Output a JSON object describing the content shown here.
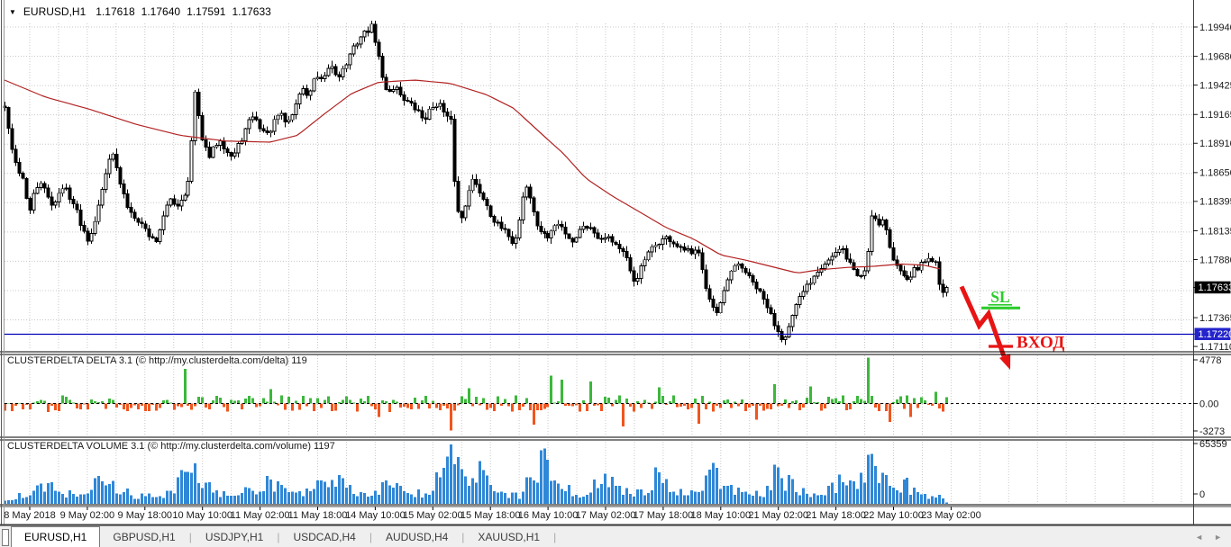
{
  "chart_header": {
    "dropdown_icon": "▼",
    "symbol_period": "EURUSD,H1",
    "open": "1.17618",
    "high": "1.17640",
    "low": "1.17591",
    "close": "1.17633"
  },
  "chart_data": {
    "type": "candlestick",
    "symbol": "EURUSD",
    "timeframe": "H1",
    "ohlc_current": {
      "open": 1.17618,
      "high": 1.1764,
      "low": 1.17591,
      "close": 1.17633
    },
    "price_axis_ticks": [
      "1.19940",
      "1.19680",
      "1.19425",
      "1.19165",
      "1.18910",
      "1.18650",
      "1.18395",
      "1.18135",
      "1.17880",
      "1.17365",
      "1.17110"
    ],
    "current_price_label": "1.17633",
    "support_level_label": "1.17220",
    "support_level": 1.1722,
    "time_axis_labels": [
      "8 May 2018",
      "9 May 02:00",
      "9 May 18:00",
      "10 May 10:00",
      "11 May 02:00",
      "11 May 18:00",
      "14 May 10:00",
      "15 May 02:00",
      "15 May 18:00",
      "16 May 10:00",
      "17 May 02:00",
      "17 May 18:00",
      "18 May 10:00",
      "21 May 02:00",
      "21 May 18:00",
      "22 May 10:00",
      "23 May 02:00"
    ],
    "price_keypoints": [
      [
        5,
        1.1922
      ],
      [
        10,
        1.19
      ],
      [
        14,
        1.1878
      ],
      [
        20,
        1.1868
      ],
      [
        26,
        1.1858
      ],
      [
        32,
        1.1828
      ],
      [
        38,
        1.1848
      ],
      [
        45,
        1.1857
      ],
      [
        52,
        1.1843
      ],
      [
        58,
        1.1836
      ],
      [
        65,
        1.1847
      ],
      [
        72,
        1.1852
      ],
      [
        78,
        1.1842
      ],
      [
        84,
        1.1832
      ],
      [
        90,
        1.1818
      ],
      [
        96,
        1.1806
      ],
      [
        102,
        1.1814
      ],
      [
        108,
        1.1836
      ],
      [
        114,
        1.1852
      ],
      [
        120,
        1.1878
      ],
      [
        124,
        1.1886
      ],
      [
        130,
        1.1862
      ],
      [
        136,
        1.1846
      ],
      [
        142,
        1.1832
      ],
      [
        150,
        1.1826
      ],
      [
        158,
        1.1818
      ],
      [
        166,
        1.1808
      ],
      [
        172,
        1.1804
      ],
      [
        180,
        1.1824
      ],
      [
        188,
        1.1842
      ],
      [
        196,
        1.1836
      ],
      [
        204,
        1.1846
      ],
      [
        210,
        1.186
      ],
      [
        216,
        1.1938
      ],
      [
        221,
        1.191
      ],
      [
        226,
        1.189
      ],
      [
        232,
        1.1878
      ],
      [
        238,
        1.1888
      ],
      [
        244,
        1.1896
      ],
      [
        250,
        1.1886
      ],
      [
        258,
        1.1878
      ],
      [
        264,
        1.1888
      ],
      [
        272,
        1.1902
      ],
      [
        280,
        1.1916
      ],
      [
        288,
        1.1906
      ],
      [
        296,
        1.1898
      ],
      [
        302,
        1.1906
      ],
      [
        310,
        1.1918
      ],
      [
        318,
        1.1908
      ],
      [
        326,
        1.192
      ],
      [
        334,
        1.194
      ],
      [
        342,
        1.1933
      ],
      [
        350,
        1.195
      ],
      [
        358,
        1.1944
      ],
      [
        366,
        1.1962
      ],
      [
        374,
        1.195
      ],
      [
        382,
        1.1958
      ],
      [
        390,
        1.1972
      ],
      [
        398,
        1.1984
      ],
      [
        406,
        1.199
      ],
      [
        412,
        1.1994
      ],
      [
        418,
        1.1976
      ],
      [
        424,
        1.1948
      ],
      [
        430,
        1.1936
      ],
      [
        438,
        1.1942
      ],
      [
        446,
        1.1932
      ],
      [
        454,
        1.1926
      ],
      [
        462,
        1.192
      ],
      [
        470,
        1.1912
      ],
      [
        478,
        1.1922
      ],
      [
        486,
        1.1928
      ],
      [
        494,
        1.1914
      ],
      [
        500,
        1.191
      ],
      [
        505,
        1.1842
      ],
      [
        510,
        1.182
      ],
      [
        516,
        1.1838
      ],
      [
        522,
        1.186
      ],
      [
        528,
        1.1853
      ],
      [
        534,
        1.1845
      ],
      [
        540,
        1.1836
      ],
      [
        546,
        1.1824
      ],
      [
        552,
        1.1818
      ],
      [
        558,
        1.1813
      ],
      [
        564,
        1.181
      ],
      [
        570,
        1.18
      ],
      [
        576,
        1.1826
      ],
      [
        582,
        1.1856
      ],
      [
        588,
        1.1842
      ],
      [
        594,
        1.182
      ],
      [
        600,
        1.1813
      ],
      [
        606,
        1.1806
      ],
      [
        612,
        1.1814
      ],
      [
        618,
        1.182
      ],
      [
        624,
        1.1816
      ],
      [
        630,
        1.1809
      ],
      [
        636,
        1.1804
      ],
      [
        642,
        1.1812
      ],
      [
        648,
        1.182
      ],
      [
        654,
        1.1816
      ],
      [
        660,
        1.1812
      ],
      [
        666,
        1.1806
      ],
      [
        672,
        1.181
      ],
      [
        678,
        1.1806
      ],
      [
        684,
        1.1801
      ],
      [
        690,
        1.1796
      ],
      [
        696,
        1.1786
      ],
      [
        702,
        1.1768
      ],
      [
        708,
        1.1774
      ],
      [
        714,
        1.1786
      ],
      [
        720,
        1.1794
      ],
      [
        726,
        1.18
      ],
      [
        732,
        1.1804
      ],
      [
        738,
        1.1807
      ],
      [
        744,
        1.1805
      ],
      [
        750,
        1.18
      ],
      [
        756,
        1.1796
      ],
      [
        762,
        1.1797
      ],
      [
        768,
        1.179
      ],
      [
        774,
        1.18
      ],
      [
        778,
        1.1786
      ],
      [
        784,
        1.176
      ],
      [
        790,
        1.1746
      ],
      [
        796,
        1.1738
      ],
      [
        802,
        1.1756
      ],
      [
        808,
        1.1772
      ],
      [
        814,
        1.178
      ],
      [
        820,
        1.1784
      ],
      [
        826,
        1.1778
      ],
      [
        832,
        1.177
      ],
      [
        838,
        1.1764
      ],
      [
        844,
        1.1756
      ],
      [
        850,
        1.1748
      ],
      [
        856,
        1.1736
      ],
      [
        862,
        1.1726
      ],
      [
        868,
        1.1718
      ],
      [
        874,
        1.1726
      ],
      [
        880,
        1.174
      ],
      [
        886,
        1.1752
      ],
      [
        892,
        1.1762
      ],
      [
        898,
        1.1768
      ],
      [
        904,
        1.1776
      ],
      [
        910,
        1.1782
      ],
      [
        916,
        1.1786
      ],
      [
        922,
        1.179
      ],
      [
        928,
        1.1794
      ],
      [
        934,
        1.1797
      ],
      [
        940,
        1.1788
      ],
      [
        946,
        1.178
      ],
      [
        952,
        1.1772
      ],
      [
        958,
        1.1776
      ],
      [
        962,
        1.179
      ],
      [
        966,
        1.1828
      ],
      [
        970,
        1.1826
      ],
      [
        974,
        1.182
      ],
      [
        978,
        1.1824
      ],
      [
        982,
        1.1818
      ],
      [
        986,
        1.18
      ],
      [
        990,
        1.1788
      ],
      [
        996,
        1.178
      ],
      [
        1002,
        1.1776
      ],
      [
        1008,
        1.1772
      ],
      [
        1014,
        1.1778
      ],
      [
        1020,
        1.1782
      ],
      [
        1026,
        1.1786
      ],
      [
        1032,
        1.179
      ],
      [
        1038,
        1.1786
      ],
      [
        1044,
        1.1762
      ],
      [
        1049,
        1.1757
      ],
      [
        1053,
        1.17633
      ]
    ],
    "ma_keypoints": [
      [
        5,
        1.1947
      ],
      [
        50,
        1.1932
      ],
      [
        100,
        1.1921
      ],
      [
        150,
        1.1908
      ],
      [
        200,
        1.1898
      ],
      [
        250,
        1.1893
      ],
      [
        300,
        1.1892
      ],
      [
        330,
        1.1898
      ],
      [
        360,
        1.1917
      ],
      [
        390,
        1.1935
      ],
      [
        420,
        1.1945
      ],
      [
        460,
        1.1947
      ],
      [
        500,
        1.1944
      ],
      [
        540,
        1.1934
      ],
      [
        570,
        1.1922
      ],
      [
        600,
        1.19
      ],
      [
        625,
        1.1882
      ],
      [
        650,
        1.186
      ],
      [
        680,
        1.1844
      ],
      [
        710,
        1.183
      ],
      [
        740,
        1.1816
      ],
      [
        770,
        1.1806
      ],
      [
        800,
        1.1792
      ],
      [
        830,
        1.1787
      ],
      [
        860,
        1.1781
      ],
      [
        885,
        1.1776
      ],
      [
        910,
        1.1779
      ],
      [
        940,
        1.1781
      ],
      [
        970,
        1.1782
      ],
      [
        1000,
        1.1784
      ],
      [
        1025,
        1.1783
      ],
      [
        1047,
        1.1779
      ]
    ],
    "delta_spikes": [
      [
        205,
        3600
      ],
      [
        300,
        1500
      ],
      [
        420,
        -1400
      ],
      [
        500,
        -2800
      ],
      [
        520,
        1600
      ],
      [
        590,
        -2200
      ],
      [
        610,
        2900
      ],
      [
        622,
        2500
      ],
      [
        655,
        2300
      ],
      [
        690,
        -2400
      ],
      [
        730,
        1700
      ],
      [
        775,
        -2100
      ],
      [
        840,
        -1700
      ],
      [
        860,
        2000
      ],
      [
        900,
        1800
      ],
      [
        963,
        4778
      ],
      [
        985,
        -1900
      ],
      [
        1010,
        -1400
      ],
      [
        1040,
        1200
      ],
      [
        1053,
        119
      ]
    ],
    "volume_profile": [
      [
        5,
        4000
      ],
      [
        30,
        12000
      ],
      [
        45,
        22000
      ],
      [
        60,
        14000
      ],
      [
        80,
        9000
      ],
      [
        100,
        20000
      ],
      [
        115,
        27000
      ],
      [
        130,
        15000
      ],
      [
        150,
        8000
      ],
      [
        170,
        7000
      ],
      [
        190,
        12000
      ],
      [
        213,
        41000
      ],
      [
        225,
        22000
      ],
      [
        240,
        10000
      ],
      [
        260,
        9000
      ],
      [
        280,
        14000
      ],
      [
        300,
        25000
      ],
      [
        315,
        14000
      ],
      [
        330,
        9000
      ],
      [
        350,
        16000
      ],
      [
        370,
        27000
      ],
      [
        385,
        15000
      ],
      [
        400,
        10000
      ],
      [
        420,
        14000
      ],
      [
        440,
        22000
      ],
      [
        455,
        12000
      ],
      [
        470,
        9000
      ],
      [
        485,
        25000
      ],
      [
        500,
        50000
      ],
      [
        515,
        30000
      ],
      [
        530,
        34000
      ],
      [
        545,
        18000
      ],
      [
        560,
        9000
      ],
      [
        575,
        8000
      ],
      [
        590,
        30000
      ],
      [
        600,
        44000
      ],
      [
        615,
        30000
      ],
      [
        630,
        14000
      ],
      [
        645,
        9000
      ],
      [
        660,
        18000
      ],
      [
        670,
        27000
      ],
      [
        685,
        17000
      ],
      [
        700,
        10000
      ],
      [
        715,
        14000
      ],
      [
        730,
        29000
      ],
      [
        745,
        16000
      ],
      [
        760,
        10000
      ],
      [
        775,
        14000
      ],
      [
        790,
        37000
      ],
      [
        805,
        20000
      ],
      [
        820,
        12000
      ],
      [
        835,
        8000
      ],
      [
        850,
        14000
      ],
      [
        860,
        30000
      ],
      [
        875,
        22000
      ],
      [
        890,
        12000
      ],
      [
        905,
        9000
      ],
      [
        920,
        14000
      ],
      [
        935,
        26000
      ],
      [
        950,
        14000
      ],
      [
        963,
        40000
      ],
      [
        975,
        28000
      ],
      [
        990,
        16000
      ],
      [
        1005,
        20000
      ],
      [
        1020,
        10000
      ],
      [
        1035,
        7000
      ],
      [
        1045,
        9000
      ],
      [
        1053,
        1197
      ]
    ],
    "annotations": {
      "stop_loss_label": "SL",
      "entry_label": "ВХОД"
    }
  },
  "panels": {
    "delta": {
      "title": "CLUSTERDELTA DELTA 3.1 (© http://my.clusterdelta.com/delta) 119",
      "axis_ticks": [
        "4778",
        "0.00",
        "-3273"
      ],
      "current_value": "119"
    },
    "volume": {
      "title": "CLUSTERDELTA VOLUME 3.1 (© http://my.clusterdelta.com/volume) 1197",
      "axis_ticks": [
        "65359",
        "0"
      ],
      "current_value": "1197"
    }
  },
  "tabs": {
    "items": [
      "EURUSD,H1",
      "GBPUSD,H1",
      "USDJPY,H1",
      "USDCAD,H4",
      "AUDUSD,H4",
      "XAUUSD,H1"
    ],
    "active_index": 0,
    "scroll_left_icon": "◄",
    "scroll_right_icon": "►"
  },
  "colors": {
    "candle_up": "#ffffff",
    "candle_down": "#000000",
    "candle_border": "#000000",
    "ma_line": "#b22222",
    "grid": "#c8c8c8",
    "support_line": "#0000bb",
    "support_badge": "#2424cc",
    "price_badge": "#000000",
    "delta_positive": "#3cb83c",
    "delta_negative": "#f0551e",
    "volume_bar": "#2f87d7",
    "annotation_green": "#2ccc2c",
    "annotation_red": "#e81414"
  }
}
